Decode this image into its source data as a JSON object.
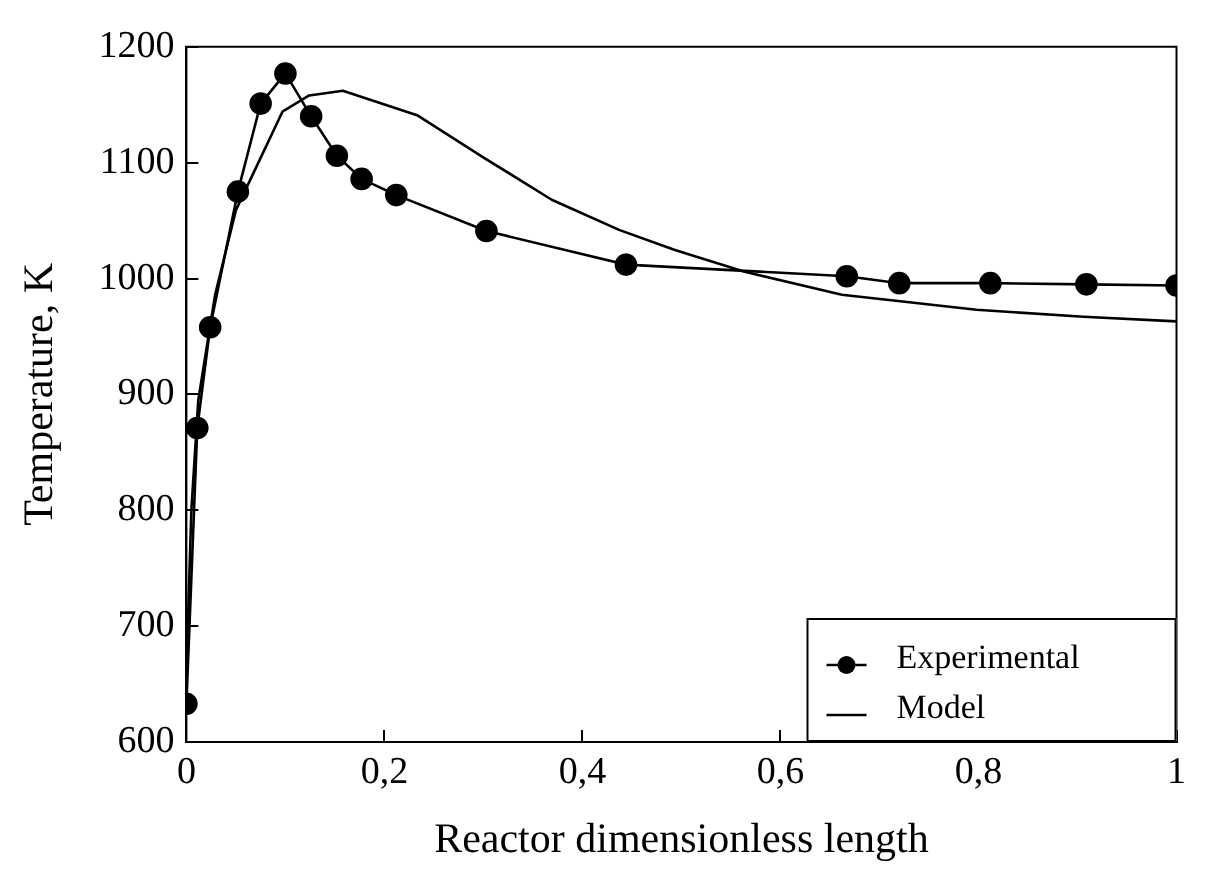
{
  "chart_data": {
    "type": "line",
    "xlabel": "Reactor dimensionless length",
    "ylabel": "Temperature, K",
    "xlim": [
      0,
      1
    ],
    "xticks": [
      0,
      {
        "value": 0.2,
        "label": "0,2"
      },
      {
        "value": 0.4,
        "label": "0,4"
      },
      {
        "value": 0.6,
        "label": "0,6"
      },
      {
        "value": 0.8,
        "label": "0,8"
      },
      1
    ],
    "ylim": [
      600,
      1200
    ],
    "yticks": [
      600,
      700,
      800,
      900,
      1000,
      1100,
      1200
    ],
    "grid": false,
    "legend": "bottom right",
    "series": [
      {
        "name": "Experimental",
        "color": "#000000",
        "marker": "circle",
        "x": [
          0,
          0.011,
          0.024,
          0.052,
          0.075,
          0.1,
          0.126,
          0.152,
          0.177,
          0.212,
          0.303,
          0.444,
          0.667,
          0.72,
          0.812,
          0.909,
          1
        ],
        "values": [
          633,
          871,
          958,
          1075,
          1151,
          1177,
          1140,
          1106,
          1086,
          1072,
          1041,
          1012,
          1002,
          996,
          996,
          995,
          994
        ]
      },
      {
        "name": "Model",
        "color": "#000000",
        "marker": "none",
        "x": [
          0,
          0.005,
          0.012,
          0.029,
          0.05,
          0.097,
          0.124,
          0.158,
          0.233,
          0.301,
          0.369,
          0.437,
          0.492,
          0.563,
          0.662,
          0.798,
          0.906,
          1
        ],
        "values": [
          660,
          800,
          895,
          986,
          1059,
          1144,
          1158,
          1162,
          1141,
          1104,
          1068,
          1042,
          1025,
          1006,
          986,
          973,
          967,
          963
        ]
      }
    ]
  }
}
